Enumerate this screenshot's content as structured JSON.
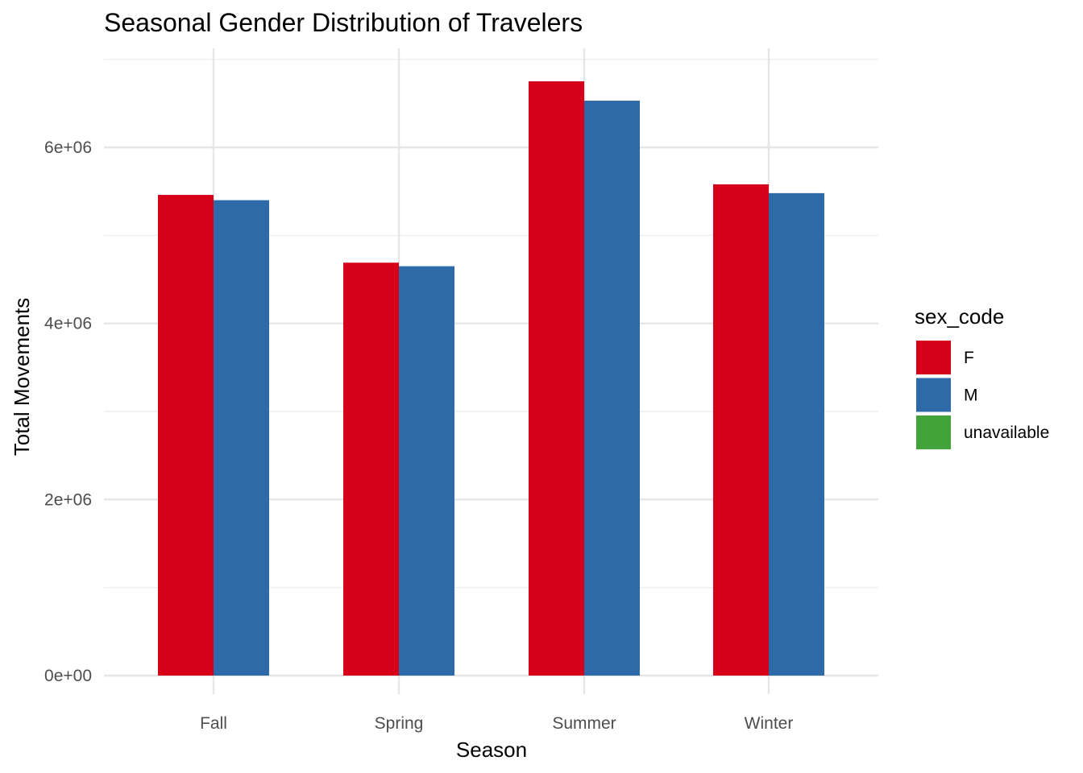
{
  "chart_data": {
    "type": "bar",
    "title": "Seasonal Gender Distribution of Travelers",
    "xlabel": "Season",
    "ylabel": "Total Movements",
    "categories": [
      "Fall",
      "Spring",
      "Summer",
      "Winter"
    ],
    "series": [
      {
        "name": "F",
        "color": "#d7001b",
        "values": [
          5460000,
          4690000,
          6750000,
          5580000
        ]
      },
      {
        "name": "M",
        "color": "#2e6aa8",
        "values": [
          5400000,
          4650000,
          6530000,
          5480000
        ]
      },
      {
        "name": "unavailable",
        "color": "#43a33b",
        "values": [
          0,
          0,
          0,
          0
        ]
      }
    ],
    "ylim": [
      0,
      7000000
    ],
    "y_ticks": [
      0,
      2000000,
      4000000,
      6000000
    ],
    "y_tick_labels": [
      "0e+00",
      "2e+06",
      "4e+06",
      "6e+06"
    ],
    "legend": {
      "title": "sex_code",
      "position": "right"
    },
    "grid": true
  }
}
